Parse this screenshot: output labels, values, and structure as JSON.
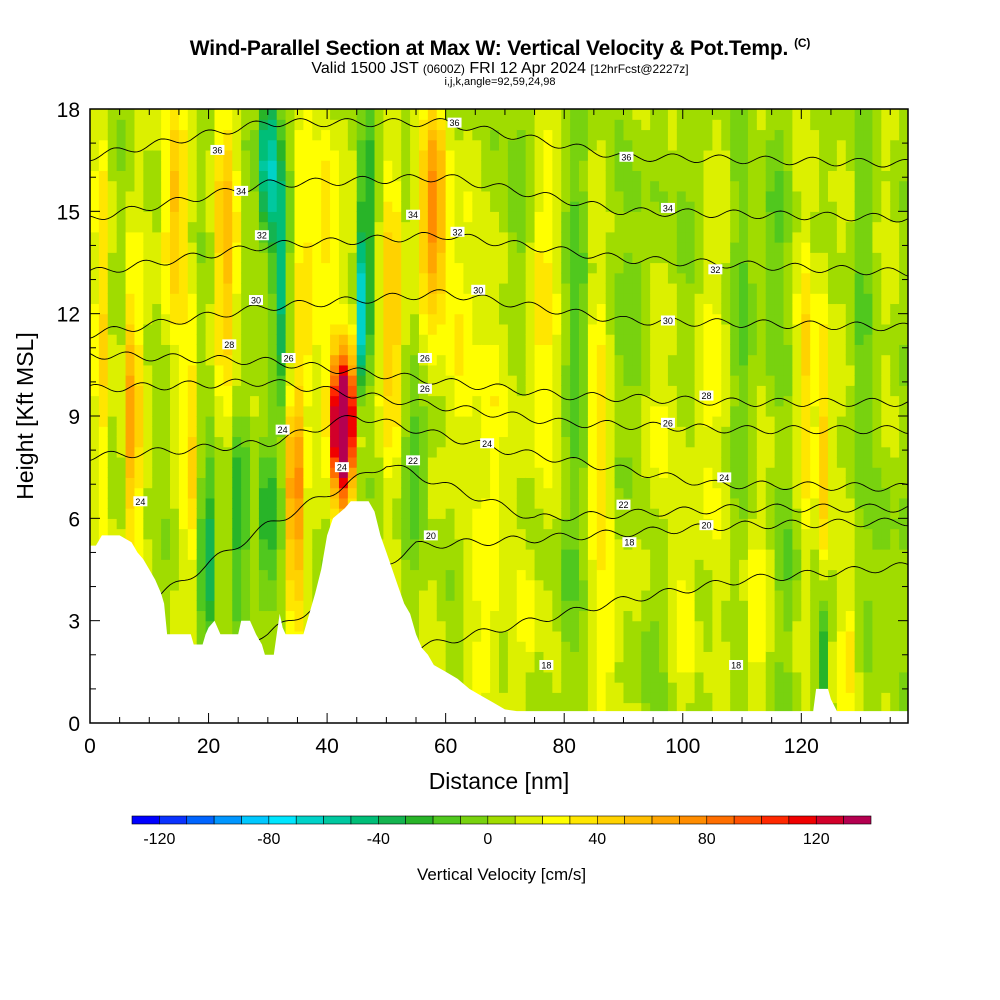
{
  "title": {
    "main": "Wind-Parallel Section at Max W: Vertical Velocity & Pot.Temp.",
    "copyright": "(C)",
    "valid_pre": "Valid 1500 JST",
    "valid_zulu": "(0600Z)",
    "valid_date": "FRI 12 Apr 2024",
    "valid_fcst": "[12hrFcst@2227z]",
    "ijk": "i,j,k,angle=92,59,24,98"
  },
  "chart_data": {
    "type": "heatmap",
    "xlabel": "Distance [nm]",
    "ylabel": "Height [Kft MSL]",
    "xlim": [
      0,
      138
    ],
    "ylim": [
      0,
      18
    ],
    "xticks": [
      0,
      20,
      40,
      60,
      80,
      100,
      120
    ],
    "yticks": [
      0,
      3,
      6,
      9,
      12,
      15,
      18
    ],
    "colorbar": {
      "label": "Vertical Velocity [cm/s]",
      "min": -130,
      "max": 140,
      "step": 10,
      "ticks": [
        -120,
        -80,
        -40,
        0,
        40,
        80,
        120
      ],
      "colors": [
        "#0000ff",
        "#0a32ff",
        "#0064ff",
        "#0096ff",
        "#00c8ff",
        "#00e6ff",
        "#00d2c8",
        "#00c8a0",
        "#00be78",
        "#14b450",
        "#28b428",
        "#50c81e",
        "#78d20f",
        "#a0dc00",
        "#dcf000",
        "#ffff00",
        "#ffe600",
        "#ffd200",
        "#ffbe00",
        "#ffa500",
        "#ff8c00",
        "#ff6e00",
        "#ff5000",
        "#ff2800",
        "#f00000",
        "#d2002a",
        "#b40050"
      ]
    },
    "theta_contours": [
      {
        "level": 18,
        "profile": [
          [
            0,
            0.6
          ],
          [
            30,
            1.0
          ],
          [
            60,
            2.4
          ],
          [
            90,
            3.6
          ],
          [
            110,
            4.2
          ],
          [
            138,
            4.6
          ]
        ]
      },
      {
        "level": 20,
        "profile": [
          [
            0,
            1.6
          ],
          [
            30,
            2.6
          ],
          [
            55,
            5.2
          ],
          [
            75,
            5.4
          ],
          [
            110,
            5.8
          ],
          [
            138,
            5.9
          ]
        ]
      },
      {
        "level": 22,
        "profile": [
          [
            0,
            2.4
          ],
          [
            30,
            5.8
          ],
          [
            50,
            7.6
          ],
          [
            75,
            6.0
          ],
          [
            110,
            6.3
          ],
          [
            138,
            6.3
          ]
        ]
      },
      {
        "level": 24,
        "profile": [
          [
            0,
            7.8
          ],
          [
            30,
            8.2
          ],
          [
            45,
            9.0
          ],
          [
            70,
            8.0
          ],
          [
            105,
            7.0
          ],
          [
            138,
            6.9
          ]
        ]
      },
      {
        "level": 26,
        "profile": [
          [
            0,
            9.8
          ],
          [
            30,
            10.0
          ],
          [
            50,
            9.5
          ],
          [
            80,
            8.8
          ],
          [
            110,
            8.6
          ],
          [
            138,
            8.6
          ]
        ]
      },
      {
        "level": 28,
        "profile": [
          [
            0,
            10.8
          ],
          [
            30,
            10.6
          ],
          [
            50,
            10.2
          ],
          [
            80,
            9.6
          ],
          [
            110,
            9.4
          ],
          [
            138,
            9.4
          ]
        ]
      },
      {
        "level": 30,
        "profile": [
          [
            0,
            11.4
          ],
          [
            30,
            12.2
          ],
          [
            60,
            12.6
          ],
          [
            90,
            11.8
          ],
          [
            138,
            11.6
          ]
        ]
      },
      {
        "level": 32,
        "profile": [
          [
            0,
            13.2
          ],
          [
            30,
            14.0
          ],
          [
            60,
            14.3
          ],
          [
            90,
            13.6
          ],
          [
            138,
            13.2
          ]
        ]
      },
      {
        "level": 34,
        "profile": [
          [
            0,
            14.8
          ],
          [
            30,
            15.8
          ],
          [
            60,
            16.0
          ],
          [
            90,
            15.0
          ],
          [
            138,
            14.8
          ]
        ]
      },
      {
        "level": 36,
        "profile": [
          [
            0,
            16.6
          ],
          [
            30,
            17.6
          ],
          [
            60,
            17.6
          ],
          [
            90,
            16.6
          ],
          [
            138,
            16.4
          ]
        ]
      }
    ],
    "contour_labels": [
      {
        "text": "36",
        "x": 21.5,
        "y": 16.8
      },
      {
        "text": "34",
        "x": 25.5,
        "y": 15.6
      },
      {
        "text": "32",
        "x": 29.0,
        "y": 14.3
      },
      {
        "text": "30",
        "x": 28.0,
        "y": 12.4
      },
      {
        "text": "28",
        "x": 23.5,
        "y": 11.1
      },
      {
        "text": "26",
        "x": 33.5,
        "y": 10.7
      },
      {
        "text": "24",
        "x": 32.5,
        "y": 8.6
      },
      {
        "text": "24",
        "x": 42.5,
        "y": 7.5
      },
      {
        "text": "24",
        "x": 8.5,
        "y": 6.5
      },
      {
        "text": "26",
        "x": 56.5,
        "y": 10.7
      },
      {
        "text": "26",
        "x": 56.5,
        "y": 9.8
      },
      {
        "text": "22",
        "x": 54.5,
        "y": 7.7
      },
      {
        "text": "24",
        "x": 67.0,
        "y": 8.2
      },
      {
        "text": "20",
        "x": 57.5,
        "y": 5.5
      },
      {
        "text": "36",
        "x": 61.5,
        "y": 17.6
      },
      {
        "text": "34",
        "x": 54.5,
        "y": 14.9
      },
      {
        "text": "32",
        "x": 62.0,
        "y": 14.4
      },
      {
        "text": "30",
        "x": 65.5,
        "y": 12.7
      },
      {
        "text": "36",
        "x": 90.5,
        "y": 16.6
      },
      {
        "text": "34",
        "x": 97.5,
        "y": 15.1
      },
      {
        "text": "32",
        "x": 105.5,
        "y": 13.3
      },
      {
        "text": "30",
        "x": 97.5,
        "y": 11.8
      },
      {
        "text": "28",
        "x": 104.0,
        "y": 9.6
      },
      {
        "text": "26",
        "x": 97.5,
        "y": 8.8
      },
      {
        "text": "24",
        "x": 107.0,
        "y": 7.2
      },
      {
        "text": "22",
        "x": 90.0,
        "y": 6.4
      },
      {
        "text": "20",
        "x": 104.0,
        "y": 5.8
      },
      {
        "text": "18",
        "x": 91.0,
        "y": 5.3
      },
      {
        "text": "18",
        "x": 77.0,
        "y": 1.7
      },
      {
        "text": "18",
        "x": 109.0,
        "y": 1.7
      }
    ],
    "terrain": [
      [
        0,
        5.2
      ],
      [
        1,
        5.2
      ],
      [
        2,
        5.5
      ],
      [
        5,
        5.5
      ],
      [
        7,
        5.3
      ],
      [
        8,
        5.0
      ],
      [
        9,
        4.8
      ],
      [
        10,
        4.5
      ],
      [
        11,
        4.2
      ],
      [
        12,
        3.8
      ],
      [
        12.5,
        3.5
      ],
      [
        13,
        2.6
      ],
      [
        17,
        2.6
      ],
      [
        17.5,
        2.3
      ],
      [
        19,
        2.3
      ],
      [
        19.5,
        2.6
      ],
      [
        20,
        2.8
      ],
      [
        21,
        3.0
      ],
      [
        22,
        2.6
      ],
      [
        25,
        2.6
      ],
      [
        25.5,
        3.0
      ],
      [
        27,
        3.0
      ],
      [
        28,
        2.6
      ],
      [
        29,
        2.3
      ],
      [
        29.5,
        2.0
      ],
      [
        31,
        2.0
      ],
      [
        31.5,
        2.6
      ],
      [
        32,
        3.2
      ],
      [
        32.5,
        2.8
      ],
      [
        33,
        2.6
      ],
      [
        36,
        2.6
      ],
      [
        37,
        3.2
      ],
      [
        38,
        3.8
      ],
      [
        39,
        4.5
      ],
      [
        40,
        5.5
      ],
      [
        41,
        6.0
      ],
      [
        43,
        6.3
      ],
      [
        44,
        6.5
      ],
      [
        47,
        6.5
      ],
      [
        48,
        6.2
      ],
      [
        49,
        5.5
      ],
      [
        50,
        5.0
      ],
      [
        51,
        4.5
      ],
      [
        52,
        4.0
      ],
      [
        53,
        3.5
      ],
      [
        54,
        3.2
      ],
      [
        55,
        2.6
      ],
      [
        56,
        2.2
      ],
      [
        57,
        2.0
      ],
      [
        58,
        1.7
      ],
      [
        60,
        1.5
      ],
      [
        62,
        1.3
      ],
      [
        64,
        1.0
      ],
      [
        66,
        0.8
      ],
      [
        68,
        0.6
      ],
      [
        70,
        0.4
      ],
      [
        72,
        0.35
      ],
      [
        122,
        0.35
      ],
      [
        122.5,
        1.0
      ],
      [
        124.5,
        1.0
      ],
      [
        125,
        0.7
      ],
      [
        126,
        0.35
      ],
      [
        138,
        0.35
      ]
    ],
    "w_features": [
      {
        "x": 2,
        "y": 12.0,
        "rx": 1.2,
        "ry": 5.0,
        "w": 30
      },
      {
        "x": 7,
        "y": 9.0,
        "rx": 1.4,
        "ry": 4.0,
        "w": 60
      },
      {
        "x": 14,
        "y": 15.0,
        "rx": 2.0,
        "ry": 3.5,
        "w": 45
      },
      {
        "x": 17,
        "y": 8.0,
        "rx": 1.2,
        "ry": 3.5,
        "w": 35
      },
      {
        "x": 20,
        "y": 5.0,
        "rx": 1.4,
        "ry": 2.5,
        "w": -45
      },
      {
        "x": 23,
        "y": 14.0,
        "rx": 2.0,
        "ry": 4.0,
        "w": 45
      },
      {
        "x": 25,
        "y": 6.0,
        "rx": 1.5,
        "ry": 3.0,
        "w": -35
      },
      {
        "x": 30,
        "y": 16.5,
        "rx": 1.4,
        "ry": 2.5,
        "w": -80
      },
      {
        "x": 32,
        "y": 13.5,
        "rx": 1.2,
        "ry": 3.5,
        "w": -55
      },
      {
        "x": 30,
        "y": 6.0,
        "rx": 1.2,
        "ry": 3.0,
        "w": -50
      },
      {
        "x": 34.5,
        "y": 6.5,
        "rx": 0.9,
        "ry": 3.5,
        "w": 115
      },
      {
        "x": 36,
        "y": 13.0,
        "rx": 1.5,
        "ry": 4.0,
        "w": 25
      },
      {
        "x": 42.5,
        "y": 8.5,
        "rx": 1.7,
        "ry": 2.0,
        "w": 135
      },
      {
        "x": 43,
        "y": 9.0,
        "rx": 3.0,
        "ry": 1.8,
        "w": 70
      },
      {
        "x": 46,
        "y": 11.5,
        "rx": 1.0,
        "ry": 3.0,
        "w": -75
      },
      {
        "x": 40,
        "y": 14.5,
        "rx": 1.8,
        "ry": 3.5,
        "w": 35
      },
      {
        "x": 47,
        "y": 15.0,
        "rx": 1.5,
        "ry": 3.0,
        "w": -30
      },
      {
        "x": 51,
        "y": 12.0,
        "rx": 2.0,
        "ry": 4.0,
        "w": 40
      },
      {
        "x": 58,
        "y": 15.0,
        "rx": 2.5,
        "ry": 3.0,
        "w": 65
      },
      {
        "x": 55,
        "y": 7.5,
        "rx": 2.5,
        "ry": 2.0,
        "w": -25
      },
      {
        "x": 62,
        "y": 11.0,
        "rx": 2.0,
        "ry": 4.0,
        "w": 25
      },
      {
        "x": 68,
        "y": 9.0,
        "rx": 2.0,
        "ry": 5.0,
        "w": 25
      },
      {
        "x": 72,
        "y": 15.0,
        "rx": 2.0,
        "ry": 4.0,
        "w": -20
      },
      {
        "x": 76,
        "y": 12.0,
        "rx": 2.0,
        "ry": 5.0,
        "w": 30
      },
      {
        "x": 82,
        "y": 12.0,
        "rx": 2.0,
        "ry": 6.0,
        "w": -20
      },
      {
        "x": 86,
        "y": 8.5,
        "rx": 2.0,
        "ry": 4.0,
        "w": 25
      },
      {
        "x": 92,
        "y": 12.0,
        "rx": 2.0,
        "ry": 5.0,
        "w": -20
      },
      {
        "x": 96,
        "y": 9.0,
        "rx": 2.0,
        "ry": 4.0,
        "w": 20
      },
      {
        "x": 100,
        "y": 14.0,
        "rx": 2.0,
        "ry": 4.0,
        "w": -15
      },
      {
        "x": 104,
        "y": 10.0,
        "rx": 2.0,
        "ry": 5.0,
        "w": 20
      },
      {
        "x": 110,
        "y": 12.0,
        "rx": 2.0,
        "ry": 5.0,
        "w": -15
      },
      {
        "x": 115,
        "y": 14.0,
        "rx": 2.0,
        "ry": 4.0,
        "w": -20
      },
      {
        "x": 121,
        "y": 10.0,
        "rx": 1.5,
        "ry": 4.0,
        "w": 30
      },
      {
        "x": 124,
        "y": 8.0,
        "rx": 1.0,
        "ry": 5.0,
        "w": 45
      },
      {
        "x": 123.5,
        "y": 2.0,
        "rx": 0.8,
        "ry": 2.0,
        "w": -45
      },
      {
        "x": 130,
        "y": 12.0,
        "rx": 2.0,
        "ry": 5.0,
        "w": -15
      },
      {
        "x": 67,
        "y": 3.0,
        "rx": 2.0,
        "ry": 2.5,
        "w": 20
      },
      {
        "x": 74,
        "y": 3.0,
        "rx": 1.5,
        "ry": 2.0,
        "w": 20
      },
      {
        "x": 80,
        "y": 4.0,
        "rx": 2.0,
        "ry": 2.5,
        "w": -15
      },
      {
        "x": 88,
        "y": 3.0,
        "rx": 2.0,
        "ry": 2.5,
        "w": 20
      },
      {
        "x": 94,
        "y": 2.0,
        "rx": 2.0,
        "ry": 1.8,
        "w": -15
      },
      {
        "x": 101,
        "y": 3.5,
        "rx": 2.0,
        "ry": 2.5,
        "w": 15
      },
      {
        "x": 112,
        "y": 3.0,
        "rx": 2.0,
        "ry": 2.5,
        "w": 20
      },
      {
        "x": 118,
        "y": 4.5,
        "rx": 2.0,
        "ry": 2.0,
        "w": -15
      },
      {
        "x": 128,
        "y": 2.0,
        "rx": 1.5,
        "ry": 1.5,
        "w": 25
      },
      {
        "x": 134,
        "y": 5.0,
        "rx": 2.0,
        "ry": 3.0,
        "w": -15
      }
    ]
  }
}
